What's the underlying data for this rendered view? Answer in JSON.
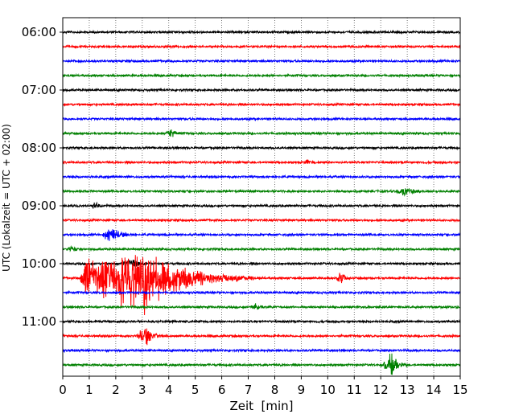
{
  "chart_data": {
    "type": "line",
    "subtype": "helicorder",
    "xlabel": "Zeit  [min]",
    "ylabel": "UTC (Lokalzeit = UTC + 02:00)",
    "xlim": [
      0,
      15
    ],
    "x_ticks": [
      "0",
      "1",
      "2",
      "3",
      "4",
      "5",
      "6",
      "7",
      "8",
      "9",
      "10",
      "11",
      "12",
      "13",
      "14",
      "15"
    ],
    "y_tick_labels": [
      "06:00",
      "07:00",
      "08:00",
      "09:00",
      "10:00",
      "11:00"
    ],
    "trace_start": "06:00",
    "trace_interval_min": 15,
    "trace_count": 24,
    "trace_colors": [
      "#000000",
      "#ff0000",
      "#0000ff",
      "#008000"
    ],
    "grid": "vertical dotted at each minute",
    "amplitude_unit": "relative to trace spacing",
    "noise_amplitude": 0.08,
    "events": [
      {
        "trace": 7,
        "start_min": 3.9,
        "duration_min": 0.6,
        "peak_amplitude": 0.35
      },
      {
        "trace": 9,
        "start_min": 9.1,
        "duration_min": 0.4,
        "peak_amplitude": 0.2
      },
      {
        "trace": 11,
        "start_min": 12.6,
        "duration_min": 1.0,
        "peak_amplitude": 0.35
      },
      {
        "trace": 12,
        "start_min": 1.1,
        "duration_min": 0.5,
        "peak_amplitude": 0.3
      },
      {
        "trace": 14,
        "start_min": 1.5,
        "duration_min": 1.1,
        "peak_amplitude": 0.6
      },
      {
        "trace": 15,
        "start_min": 0.2,
        "duration_min": 0.5,
        "peak_amplitude": 0.25
      },
      {
        "trace": 16,
        "start_min": 2.2,
        "duration_min": 1.2,
        "peak_amplitude": 0.3
      },
      {
        "trace": 17,
        "start_min": 0.6,
        "duration_min": 6.6,
        "peak_amplitude": 3.2
      },
      {
        "trace": 17,
        "start_min": 10.3,
        "duration_min": 0.6,
        "peak_amplitude": 0.45
      },
      {
        "trace": 19,
        "start_min": 7.1,
        "duration_min": 0.5,
        "peak_amplitude": 0.25
      },
      {
        "trace": 21,
        "start_min": 2.8,
        "duration_min": 1.0,
        "peak_amplitude": 0.75
      },
      {
        "trace": 23,
        "start_min": 12.1,
        "duration_min": 0.9,
        "peak_amplitude": 0.95
      }
    ]
  }
}
